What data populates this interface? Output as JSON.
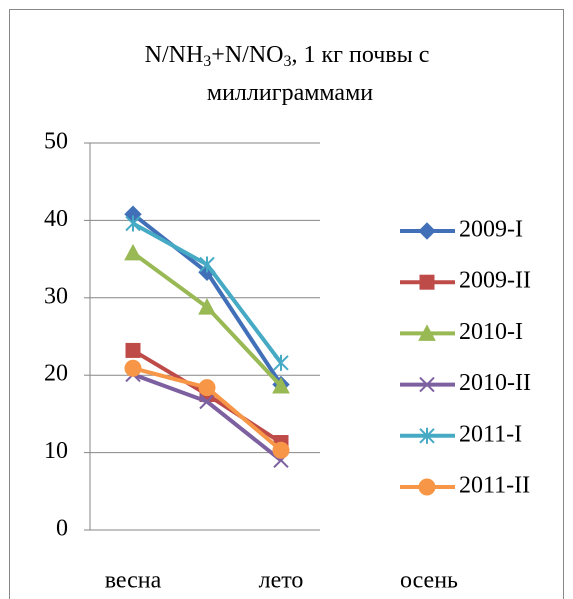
{
  "chart_data": {
    "type": "line",
    "title": "N/NH3+N/NO3, 1 кг почвы с миллиграммами",
    "categories": [
      "весна",
      "лето",
      "осень"
    ],
    "series": [
      {
        "name": "2009-I",
        "color": "#4170b8",
        "marker": "diamond",
        "values": [
          40.8,
          33.3,
          18.8
        ]
      },
      {
        "name": "2009-II",
        "color": "#be4b48",
        "marker": "square",
        "values": [
          23.2,
          17.5,
          11.3
        ]
      },
      {
        "name": "2010-I",
        "color": "#98b954",
        "marker": "triangle",
        "values": [
          35.8,
          28.8,
          18.6
        ]
      },
      {
        "name": "2010-II",
        "color": "#7d60a0",
        "marker": "x",
        "values": [
          20.1,
          16.6,
          9.0
        ]
      },
      {
        "name": "2011-I",
        "color": "#46aac5",
        "marker": "star",
        "values": [
          39.6,
          34.3,
          21.6
        ]
      },
      {
        "name": "2011-II",
        "color": "#f79646",
        "marker": "circle",
        "values": [
          20.9,
          18.4,
          10.3
        ]
      }
    ],
    "ylim": [
      0,
      50
    ],
    "yticks": [
      0,
      10,
      20,
      30,
      40,
      50
    ],
    "grid": true,
    "legend": "right"
  }
}
